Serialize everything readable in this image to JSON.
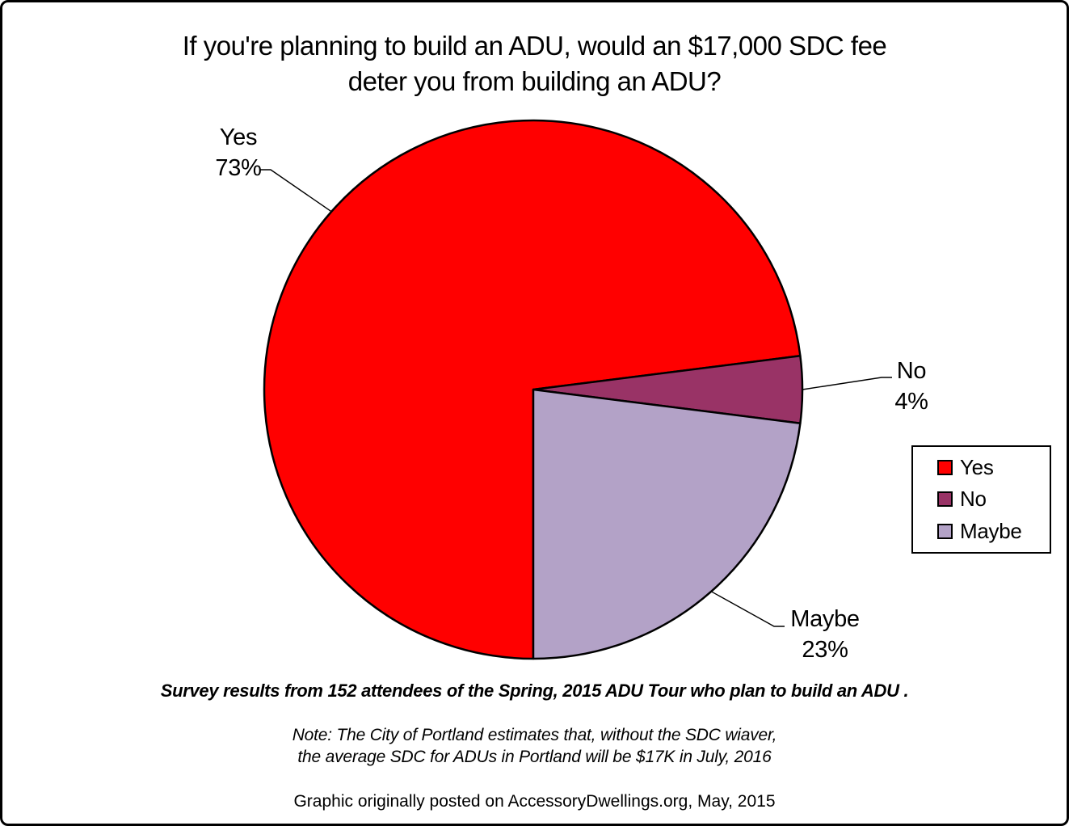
{
  "title": {
    "line1": "If you're planning to build an ADU, would an $17,000 SDC fee",
    "line2": "deter you from building an ADU?"
  },
  "chart_data": {
    "type": "pie",
    "title": "If you're planning to build an ADU, would an $17,000 SDC fee deter you from building an ADU?",
    "start_angle_deg_from_top_clockwise": 180,
    "direction": "clockwise",
    "stroke_color": "#000000",
    "legend_position": "right",
    "slices": [
      {
        "label": "Yes",
        "value_pct": 73,
        "pct_label": "73%",
        "color": "#FF0000"
      },
      {
        "label": "No",
        "value_pct": 4,
        "pct_label": "4%",
        "color": "#993366"
      },
      {
        "label": "Maybe",
        "value_pct": 23,
        "pct_label": "23%",
        "color": "#B3A2C7"
      }
    ]
  },
  "footer": {
    "survey_note": "Survey results from 152 attendees of the Spring, 2015 ADU Tour who plan to build an ADU .",
    "sdc_note_line1": "Note: The City of Portland estimates that, without the SDC wiaver,",
    "sdc_note_line2": "the average SDC for ADUs in Portland will be $17K in July, 2016",
    "credit": "Graphic originally posted on AccessoryDwellings.org, May, 2015"
  }
}
